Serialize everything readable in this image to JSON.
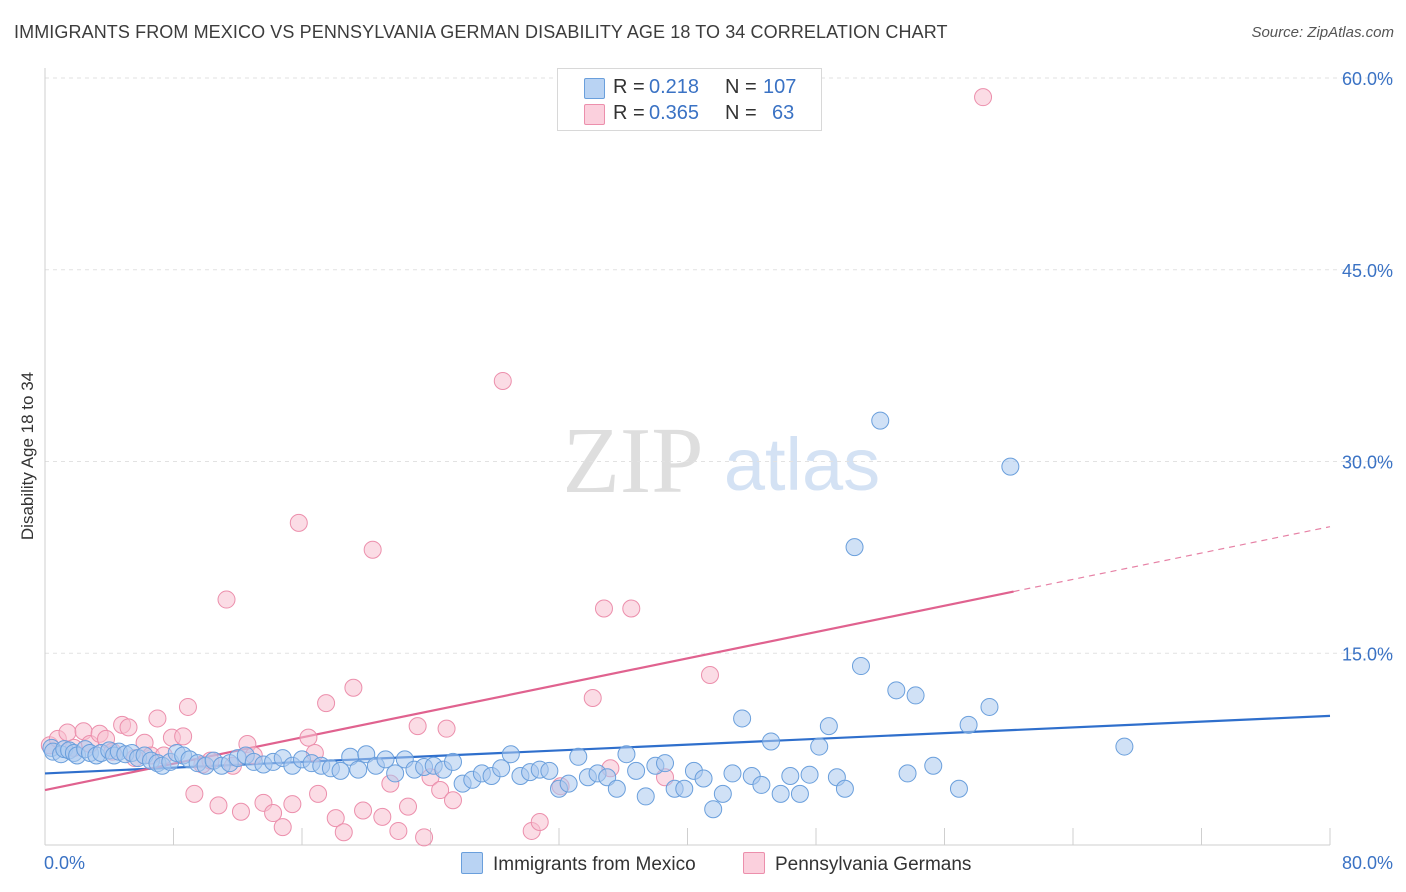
{
  "title": "IMMIGRANTS FROM MEXICO VS PENNSYLVANIA GERMAN DISABILITY AGE 18 TO 34 CORRELATION CHART",
  "source": "Source: ZipAtlas.com",
  "watermark": {
    "zip": "ZIP",
    "atlas": "atlas"
  },
  "legend_top": [
    {
      "r_label": "R =",
      "r_value": "0.218",
      "n_label": "N =",
      "n_value": "107"
    },
    {
      "r_label": "R =",
      "r_value": "0.365",
      "n_label": "N =",
      "n_value": "63"
    }
  ],
  "colors": {
    "blue_fill": "#aac8ee",
    "blue_stroke": "#6a9fdc",
    "blue_line": "#2f6fcc",
    "pink_fill": "#f7bfd0",
    "pink_stroke": "#ec8fac",
    "pink_line": "#e0628f",
    "axis_text": "#3a72c4",
    "grid": "#e2e2e2"
  },
  "chart_data": {
    "type": "scatter",
    "xlabel": "",
    "ylabel": "Disability Age 18 to 34",
    "xlim": [
      0,
      80
    ],
    "ylim": [
      0,
      62
    ],
    "x_tick_labels": [
      "0.0%",
      "80.0%"
    ],
    "y_ticks": [
      15,
      30,
      45,
      60
    ],
    "y_tick_labels": [
      "15.0%",
      "30.0%",
      "45.0%",
      "60.0%"
    ],
    "grid": true,
    "legend_position": "bottom-center",
    "series": [
      {
        "name": "Immigrants from Mexico",
        "color": "#6a9fdc",
        "r": 0.218,
        "n": 107,
        "trend": {
          "x0": 0,
          "y0": 5.6,
          "x1": 80,
          "y1": 10.1,
          "dashed_from": null
        },
        "points": [
          [
            0.4,
            7.6
          ],
          [
            0.5,
            7.3
          ],
          [
            1.0,
            7.1
          ],
          [
            1.2,
            7.5
          ],
          [
            1.5,
            7.4
          ],
          [
            1.8,
            7.2
          ],
          [
            2.0,
            7.0
          ],
          [
            2.5,
            7.5
          ],
          [
            2.8,
            7.2
          ],
          [
            3.2,
            7.0
          ],
          [
            3.5,
            7.2
          ],
          [
            4.0,
            7.4
          ],
          [
            4.3,
            7.0
          ],
          [
            4.6,
            7.3
          ],
          [
            5.0,
            7.1
          ],
          [
            5.4,
            7.2
          ],
          [
            5.8,
            6.8
          ],
          [
            6.2,
            7.0
          ],
          [
            6.6,
            6.6
          ],
          [
            7.0,
            6.4
          ],
          [
            7.3,
            6.2
          ],
          [
            7.8,
            6.5
          ],
          [
            8.2,
            7.2
          ],
          [
            8.6,
            7.0
          ],
          [
            9.0,
            6.7
          ],
          [
            9.5,
            6.4
          ],
          [
            10.0,
            6.2
          ],
          [
            10.5,
            6.6
          ],
          [
            11.0,
            6.2
          ],
          [
            11.5,
            6.4
          ],
          [
            12.0,
            6.8
          ],
          [
            12.5,
            7.0
          ],
          [
            13.0,
            6.5
          ],
          [
            13.6,
            6.3
          ],
          [
            14.2,
            6.5
          ],
          [
            14.8,
            6.8
          ],
          [
            15.4,
            6.2
          ],
          [
            16.0,
            6.7
          ],
          [
            16.6,
            6.4
          ],
          [
            17.2,
            6.2
          ],
          [
            17.8,
            6.0
          ],
          [
            18.4,
            5.8
          ],
          [
            19.0,
            6.9
          ],
          [
            19.5,
            5.9
          ],
          [
            20.0,
            7.1
          ],
          [
            20.6,
            6.2
          ],
          [
            21.2,
            6.7
          ],
          [
            21.8,
            5.6
          ],
          [
            22.4,
            6.7
          ],
          [
            23.0,
            5.9
          ],
          [
            23.6,
            6.1
          ],
          [
            24.2,
            6.2
          ],
          [
            24.8,
            5.9
          ],
          [
            25.4,
            6.5
          ],
          [
            26.0,
            4.8
          ],
          [
            26.6,
            5.1
          ],
          [
            27.2,
            5.6
          ],
          [
            27.8,
            5.4
          ],
          [
            28.4,
            6.0
          ],
          [
            29.0,
            7.1
          ],
          [
            29.6,
            5.4
          ],
          [
            30.2,
            5.7
          ],
          [
            30.8,
            5.9
          ],
          [
            31.4,
            5.8
          ],
          [
            32.0,
            4.4
          ],
          [
            32.6,
            4.8
          ],
          [
            33.2,
            6.9
          ],
          [
            33.8,
            5.3
          ],
          [
            34.4,
            5.6
          ],
          [
            35.0,
            5.3
          ],
          [
            35.6,
            4.4
          ],
          [
            36.2,
            7.1
          ],
          [
            36.8,
            5.8
          ],
          [
            37.4,
            3.8
          ],
          [
            38.0,
            6.2
          ],
          [
            38.6,
            6.4
          ],
          [
            39.2,
            4.4
          ],
          [
            39.8,
            4.4
          ],
          [
            40.4,
            5.8
          ],
          [
            41.0,
            5.2
          ],
          [
            41.6,
            2.8
          ],
          [
            42.2,
            4.0
          ],
          [
            42.8,
            5.6
          ],
          [
            43.4,
            9.9
          ],
          [
            44.0,
            5.4
          ],
          [
            44.6,
            4.7
          ],
          [
            45.2,
            8.1
          ],
          [
            45.8,
            4.0
          ],
          [
            46.4,
            5.4
          ],
          [
            47.0,
            4.0
          ],
          [
            47.6,
            5.5
          ],
          [
            48.2,
            7.7
          ],
          [
            48.8,
            9.3
          ],
          [
            49.3,
            5.3
          ],
          [
            49.8,
            4.4
          ],
          [
            50.4,
            23.3
          ],
          [
            50.8,
            14.0
          ],
          [
            52.0,
            33.2
          ],
          [
            53.0,
            12.1
          ],
          [
            53.7,
            5.6
          ],
          [
            54.2,
            11.7
          ],
          [
            55.3,
            6.2
          ],
          [
            56.9,
            4.4
          ],
          [
            57.5,
            9.4
          ],
          [
            58.8,
            10.8
          ],
          [
            60.1,
            29.6
          ],
          [
            67.2,
            7.7
          ]
        ]
      },
      {
        "name": "Pennsylvania Germans",
        "color": "#ec8fac",
        "r": 0.365,
        "n": 63,
        "trend": {
          "x0": 0,
          "y0": 4.3,
          "x1": 80,
          "y1": 24.9,
          "dashed_from": 60.3
        },
        "points": [
          [
            0.3,
            7.8
          ],
          [
            0.8,
            8.3
          ],
          [
            1.4,
            8.8
          ],
          [
            1.8,
            7.6
          ],
          [
            2.4,
            8.9
          ],
          [
            2.8,
            7.9
          ],
          [
            3.4,
            8.7
          ],
          [
            3.8,
            8.3
          ],
          [
            4.2,
            7.3
          ],
          [
            4.8,
            9.4
          ],
          [
            5.2,
            9.2
          ],
          [
            5.6,
            6.8
          ],
          [
            6.2,
            8.0
          ],
          [
            6.6,
            7.0
          ],
          [
            7.0,
            9.9
          ],
          [
            7.4,
            7.0
          ],
          [
            7.9,
            8.4
          ],
          [
            8.6,
            8.5
          ],
          [
            8.9,
            10.8
          ],
          [
            9.3,
            4.0
          ],
          [
            9.8,
            6.3
          ],
          [
            10.3,
            6.6
          ],
          [
            10.8,
            3.1
          ],
          [
            11.3,
            19.2
          ],
          [
            11.7,
            6.2
          ],
          [
            12.2,
            2.6
          ],
          [
            12.6,
            7.9
          ],
          [
            13.0,
            7.0
          ],
          [
            13.6,
            3.3
          ],
          [
            14.2,
            2.5
          ],
          [
            14.8,
            1.4
          ],
          [
            15.4,
            3.2
          ],
          [
            15.8,
            25.2
          ],
          [
            16.4,
            8.4
          ],
          [
            16.8,
            7.2
          ],
          [
            17.0,
            4.0
          ],
          [
            17.5,
            11.1
          ],
          [
            18.1,
            2.1
          ],
          [
            18.6,
            1.0
          ],
          [
            19.2,
            12.3
          ],
          [
            19.8,
            2.7
          ],
          [
            20.4,
            23.1
          ],
          [
            21.0,
            2.2
          ],
          [
            21.5,
            4.8
          ],
          [
            22.0,
            1.1
          ],
          [
            22.6,
            3.0
          ],
          [
            23.2,
            9.3
          ],
          [
            23.6,
            0.6
          ],
          [
            24.0,
            5.3
          ],
          [
            24.6,
            4.3
          ],
          [
            25.0,
            9.1
          ],
          [
            25.4,
            3.5
          ],
          [
            28.5,
            36.3
          ],
          [
            30.3,
            1.1
          ],
          [
            30.8,
            1.8
          ],
          [
            32.1,
            4.6
          ],
          [
            34.1,
            11.5
          ],
          [
            34.8,
            18.5
          ],
          [
            35.2,
            6.0
          ],
          [
            36.5,
            18.5
          ],
          [
            38.6,
            5.3
          ],
          [
            41.4,
            13.3
          ],
          [
            58.4,
            58.5
          ]
        ]
      }
    ]
  }
}
